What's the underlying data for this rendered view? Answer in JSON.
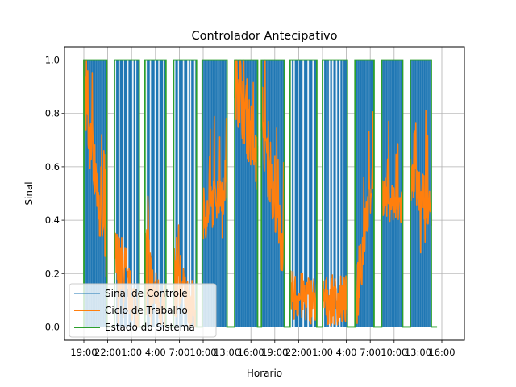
{
  "chart_data": {
    "type": "line",
    "title": "Controlador Antecipativo",
    "xlabel": "Horario",
    "ylabel": "Sinal",
    "xlim": [
      -1.2,
      13.0
    ],
    "ylim": [
      -0.05,
      1.05
    ],
    "x_unit": "days",
    "x_tick_labels": [
      "19:00",
      "22:00",
      "1:00",
      "4:00",
      "7:00",
      "10:00",
      "13:00",
      "16:00",
      "19:00",
      "22:00",
      "1:00",
      "4:00",
      "7:00",
      "10:00",
      "13:00",
      "16:00"
    ],
    "x_tick_values": [
      0.0,
      0.125,
      0.25,
      0.375,
      0.5,
      0.625,
      0.75,
      0.875,
      1.0,
      1.125,
      1.25,
      1.375,
      1.5,
      1.625,
      1.75,
      1.875
    ],
    "y_ticks": [
      0.0,
      0.2,
      0.4,
      0.6,
      0.8,
      1.0
    ],
    "y_tick_labels": [
      "0.0",
      "0.2",
      "0.4",
      "0.6",
      "0.8",
      "1.0"
    ],
    "grid": true,
    "legend_position": "lower-left",
    "series": [
      {
        "name": "Sinal de Controle",
        "color": "#1f77b4",
        "style": "dense switching 0/1 within each ON interval",
        "on_intervals": [
          [
            0.0,
            0.12
          ],
          [
            0.16,
            0.29
          ],
          [
            0.32,
            0.43
          ],
          [
            0.47,
            0.59
          ],
          [
            0.62,
            0.75
          ],
          [
            0.79,
            0.91
          ],
          [
            0.93,
            1.05
          ],
          [
            1.08,
            1.22
          ],
          [
            1.25,
            1.38
          ],
          [
            1.42,
            1.52
          ],
          [
            1.56,
            1.67
          ],
          [
            1.71,
            1.82
          ]
        ]
      },
      {
        "name": "Ciclo de Trabalho",
        "color": "#ff7f0e",
        "style": "duty cycle between 0 and 1, noisy",
        "segments": [
          {
            "start": 0.0,
            "end": 0.12,
            "level_start": 0.9,
            "level_end": 0.25
          },
          {
            "start": 0.16,
            "end": 0.29,
            "level_start": 0.25,
            "level_end": 0.05
          },
          {
            "start": 0.32,
            "end": 0.43,
            "level_start": 0.2,
            "level_end": 0.05
          },
          {
            "start": 0.47,
            "end": 0.59,
            "level_start": 0.2,
            "level_end": 0.05
          },
          {
            "start": 0.62,
            "end": 0.75,
            "level_start": 0.4,
            "level_end": 0.55
          },
          {
            "start": 0.79,
            "end": 0.91,
            "level_start": 1.0,
            "level_end": 0.6
          },
          {
            "start": 0.93,
            "end": 1.05,
            "level_start": 0.75,
            "level_end": 0.25
          },
          {
            "start": 1.08,
            "end": 1.22,
            "level_start": 0.12,
            "level_end": 0.1
          },
          {
            "start": 1.25,
            "end": 1.38,
            "level_start": 0.1,
            "level_end": 0.1
          },
          {
            "start": 1.42,
            "end": 1.52,
            "level_start": 0.1,
            "level_end": 0.6
          },
          {
            "start": 1.56,
            "end": 1.67,
            "level_start": 0.5,
            "level_end": 0.45
          },
          {
            "start": 1.71,
            "end": 1.82,
            "level_start": 0.55,
            "level_end": 0.45
          }
        ]
      },
      {
        "name": "Estado do Sistema",
        "color": "#2ca02c",
        "style": "step 0/1",
        "on_intervals": [
          [
            0.0,
            0.12
          ],
          [
            0.16,
            0.29
          ],
          [
            0.32,
            0.43
          ],
          [
            0.47,
            0.59
          ],
          [
            0.62,
            0.75
          ],
          [
            0.79,
            0.91
          ],
          [
            0.93,
            1.05
          ],
          [
            1.08,
            1.22
          ],
          [
            1.25,
            1.38
          ],
          [
            1.42,
            1.52
          ],
          [
            1.56,
            1.67
          ],
          [
            1.71,
            1.82
          ]
        ],
        "end": 1.85
      }
    ]
  }
}
